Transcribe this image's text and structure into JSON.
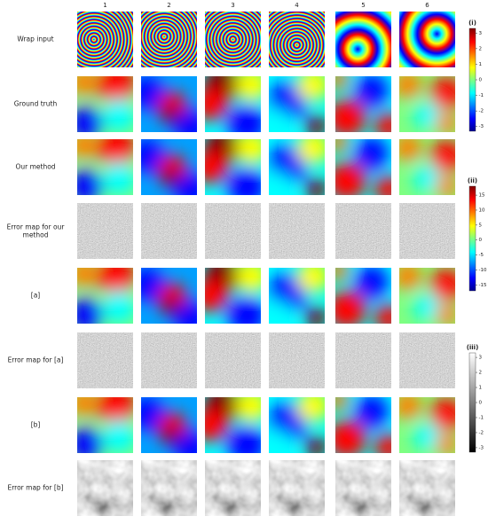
{
  "columns": [
    "1",
    "2",
    "3",
    "4",
    "5",
    "6"
  ],
  "rows": [
    {
      "label": "Wrap input",
      "kind": "wrap"
    },
    {
      "label": "Ground truth",
      "kind": "field"
    },
    {
      "label": "Our method",
      "kind": "field"
    },
    {
      "label": "Error map for our method",
      "kind": "error"
    },
    {
      "label": "[a]",
      "kind": "field"
    },
    {
      "label": "Error map for [a]",
      "kind": "error"
    },
    {
      "label": "[b]",
      "kind": "field"
    },
    {
      "label": "Error map for [b]",
      "kind": "blurgray"
    }
  ],
  "colorbars": [
    {
      "label": "(i)",
      "lim": [
        -3.3,
        3.3
      ],
      "ticks": [
        3,
        2,
        1,
        0,
        -1,
        -2,
        -3
      ],
      "cmap": "jet"
    },
    {
      "label": "(ii)",
      "lim": [
        -17,
        18
      ],
      "ticks": [
        15,
        10,
        5,
        0,
        -5,
        -10,
        -15
      ],
      "cmap": "jet"
    },
    {
      "label": "(iii)",
      "lim": [
        -3.3,
        3.3
      ],
      "ticks": [
        3,
        2,
        1,
        0,
        -1,
        -2,
        -3
      ],
      "cmap": "gray"
    }
  ]
}
